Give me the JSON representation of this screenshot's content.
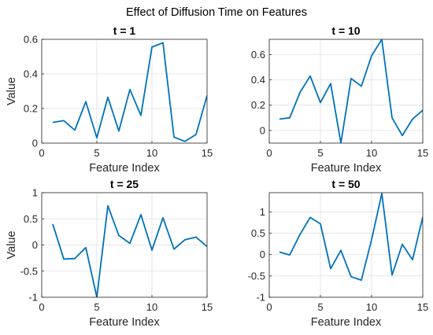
{
  "figure": {
    "suptitle": "Effect of Diffusion Time on Features",
    "line_color": "#0072BD"
  },
  "chart_data": [
    {
      "type": "line",
      "title": "t = 1",
      "xlabel": "Feature Index",
      "ylabel": "Value",
      "xlim": [
        0,
        15
      ],
      "ylim": [
        0,
        0.6
      ],
      "xticks": [
        0,
        5,
        10,
        15
      ],
      "yticks": [
        0,
        0.2,
        0.4,
        0.6
      ],
      "grid": true,
      "x": [
        1,
        2,
        3,
        4,
        5,
        6,
        7,
        8,
        9,
        10,
        11,
        12,
        13,
        14,
        15
      ],
      "values": [
        0.12,
        0.13,
        0.075,
        0.24,
        0.03,
        0.265,
        0.07,
        0.31,
        0.16,
        0.555,
        0.58,
        0.035,
        0.01,
        0.05,
        0.275
      ]
    },
    {
      "type": "line",
      "title": "t = 10",
      "xlabel": "Feature Index",
      "ylabel": "",
      "xlim": [
        0,
        15
      ],
      "ylim": [
        -0.1,
        0.72
      ],
      "xticks": [
        0,
        5,
        10,
        15
      ],
      "yticks": [
        0,
        0.2,
        0.4,
        0.6
      ],
      "grid": true,
      "x": [
        1,
        2,
        3,
        4,
        5,
        6,
        7,
        8,
        9,
        10,
        11,
        12,
        13,
        14,
        15
      ],
      "values": [
        0.09,
        0.1,
        0.3,
        0.43,
        0.22,
        0.37,
        -0.1,
        0.41,
        0.35,
        0.59,
        0.72,
        0.1,
        -0.04,
        0.09,
        0.16
      ]
    },
    {
      "type": "line",
      "title": "t = 25",
      "xlabel": "Feature Index",
      "ylabel": "Value",
      "xlim": [
        0,
        15
      ],
      "ylim": [
        -1,
        1
      ],
      "xticks": [
        0,
        5,
        10,
        15
      ],
      "yticks": [
        -1,
        -0.5,
        0,
        0.5,
        1
      ],
      "grid": true,
      "x": [
        1,
        2,
        3,
        4,
        5,
        6,
        7,
        8,
        9,
        10,
        11,
        12,
        13,
        14,
        15
      ],
      "values": [
        0.4,
        -0.27,
        -0.26,
        -0.05,
        -1.0,
        0.75,
        0.18,
        0.03,
        0.58,
        -0.1,
        0.52,
        -0.08,
        0.1,
        0.15,
        -0.03
      ]
    },
    {
      "type": "line",
      "title": "t = 50",
      "xlabel": "Feature Index",
      "ylabel": "",
      "xlim": [
        0,
        15
      ],
      "ylim": [
        -1,
        1.45
      ],
      "xticks": [
        0,
        5,
        10,
        15
      ],
      "yticks": [
        -1,
        -0.5,
        0,
        0.5,
        1
      ],
      "grid": true,
      "x": [
        1,
        2,
        3,
        4,
        5,
        6,
        7,
        8,
        9,
        10,
        11,
        12,
        13,
        14,
        15
      ],
      "values": [
        0.06,
        -0.01,
        0.47,
        0.87,
        0.72,
        -0.33,
        0.1,
        -0.52,
        -0.6,
        0.35,
        1.43,
        -0.48,
        0.24,
        -0.12,
        0.88
      ]
    }
  ]
}
